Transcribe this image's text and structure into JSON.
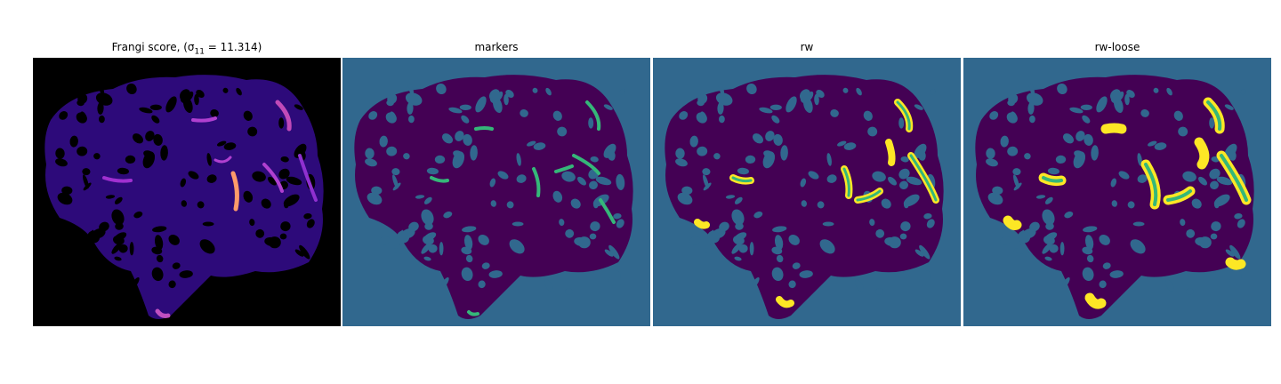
{
  "figure": {
    "panels": [
      {
        "id": "frangi",
        "title": "Frangi score, (σ",
        "title_sub": "11",
        "title_tail": " = 11.314)",
        "colormap": "magma"
      },
      {
        "id": "markers",
        "title": "markers",
        "colormap": "viridis"
      },
      {
        "id": "rw",
        "title": "rw",
        "colormap": "viridis"
      },
      {
        "id": "rw_loose",
        "title": "rw-loose",
        "colormap": "viridis"
      }
    ]
  },
  "colors": {
    "background_black": "#000000",
    "tissue_dark_blue": "#2d0a7a",
    "vessel_purple": "#8a2be2",
    "vessel_bright": "#f08a5a",
    "viridis_bg": "#31688e",
    "viridis_tissue": "#440154",
    "viridis_marker": "#35b779",
    "viridis_yellow": "#fde725"
  }
}
